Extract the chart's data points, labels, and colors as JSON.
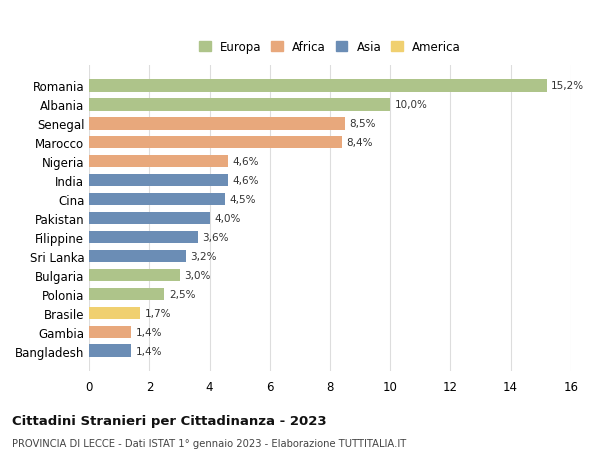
{
  "countries": [
    "Romania",
    "Albania",
    "Senegal",
    "Marocco",
    "Nigeria",
    "India",
    "Cina",
    "Pakistan",
    "Filippine",
    "Sri Lanka",
    "Bulgaria",
    "Polonia",
    "Brasile",
    "Gambia",
    "Bangladesh"
  ],
  "values": [
    15.2,
    10.0,
    8.5,
    8.4,
    4.6,
    4.6,
    4.5,
    4.0,
    3.6,
    3.2,
    3.0,
    2.5,
    1.7,
    1.4,
    1.4
  ],
  "labels": [
    "15,2%",
    "10,0%",
    "8,5%",
    "8,4%",
    "4,6%",
    "4,6%",
    "4,5%",
    "4,0%",
    "3,6%",
    "3,2%",
    "3,0%",
    "2,5%",
    "1,7%",
    "1,4%",
    "1,4%"
  ],
  "colors": [
    "#aec48a",
    "#aec48a",
    "#e8a87c",
    "#e8a87c",
    "#e8a87c",
    "#6b8db5",
    "#6b8db5",
    "#6b8db5",
    "#6b8db5",
    "#6b8db5",
    "#aec48a",
    "#aec48a",
    "#f0d070",
    "#e8a87c",
    "#6b8db5"
  ],
  "legend_order": [
    "Europa",
    "Africa",
    "Asia",
    "America"
  ],
  "legend_colors": {
    "Europa": "#aec48a",
    "Africa": "#e8a87c",
    "Asia": "#6b8db5",
    "America": "#f0d070"
  },
  "title": "Cittadini Stranieri per Cittadinanza - 2023",
  "subtitle": "PROVINCIA DI LECCE - Dati ISTAT 1° gennaio 2023 - Elaborazione TUTTITALIA.IT",
  "xlim": [
    0,
    16
  ],
  "xticks": [
    0,
    2,
    4,
    6,
    8,
    10,
    12,
    14,
    16
  ],
  "background_color": "#ffffff",
  "grid_color": "#dddddd"
}
